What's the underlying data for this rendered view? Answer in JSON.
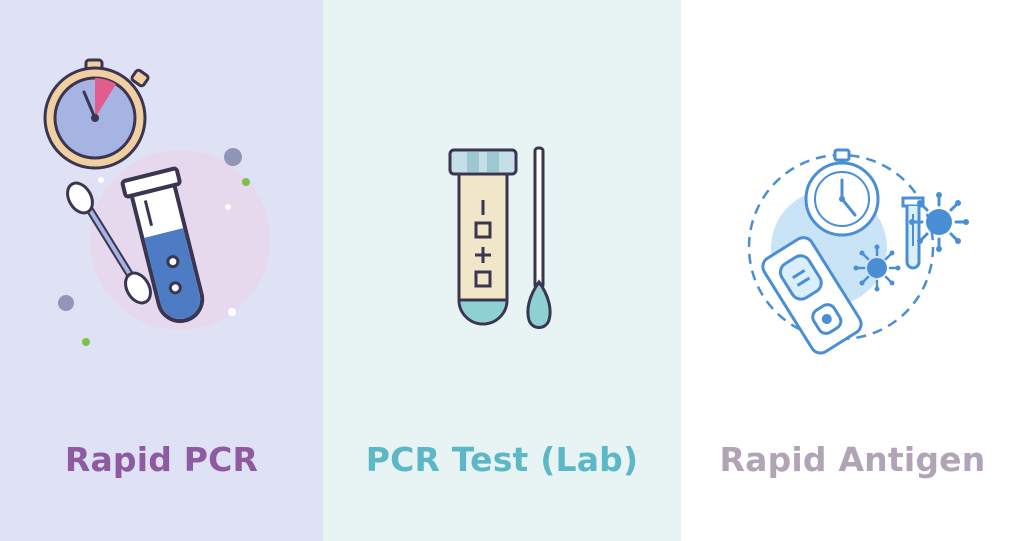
{
  "panels": [
    {
      "title": "Rapid PCR",
      "icons": [
        "stopwatch-icon",
        "cotton-swab-icon",
        "test-tube-icon"
      ],
      "colors": {
        "background": "#dfe1f5",
        "title": "#8e5aa0"
      }
    },
    {
      "title": "PCR Test (Lab)",
      "icons": [
        "sample-tube-icon",
        "swab-stick-icon"
      ],
      "colors": {
        "background": "#e7f4f3",
        "title": "#5cb7c6"
      }
    },
    {
      "title": "Rapid Antigen",
      "icons": [
        "stopwatch-icon",
        "antigen-test-cassette-icon",
        "virus-icon",
        "dropper-icon"
      ],
      "colors": {
        "background": "#ffffff",
        "title": "#b2a4b7"
      }
    }
  ]
}
